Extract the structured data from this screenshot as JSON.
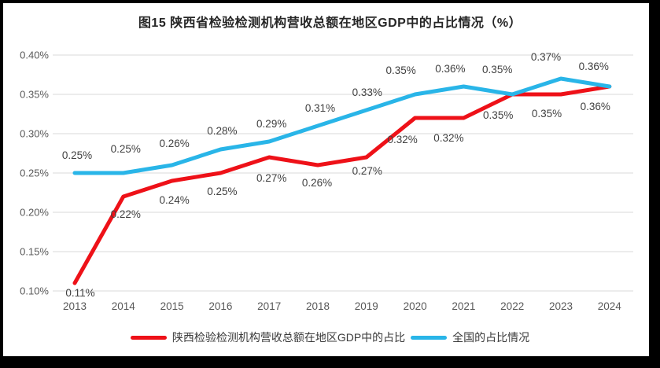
{
  "chart_data": {
    "type": "line",
    "title": "图15 陕西省检验检测机构营收总额在地区GDP中的占比情况（%）",
    "x": [
      2013,
      2014,
      2015,
      2016,
      2017,
      2018,
      2019,
      2020,
      2021,
      2022,
      2023,
      2024
    ],
    "ylim": [
      0.1,
      0.4
    ],
    "ytick_step": 0.05,
    "ytick_labels": [
      "0.10%",
      "0.15%",
      "0.20%",
      "0.25%",
      "0.30%",
      "0.35%",
      "0.40%"
    ],
    "grid": true,
    "legend_position": "bottom",
    "series": [
      {
        "key": "shaanxi",
        "name": "陕西检验检测机构营收总额在地区GDP中的占比",
        "color": "#EE1118",
        "label_side": "below",
        "values": [
          0.11,
          0.22,
          0.24,
          0.25,
          0.27,
          0.26,
          0.27,
          0.32,
          0.32,
          0.35,
          0.35,
          0.36
        ],
        "labels": [
          "0.11%",
          "0.22%",
          "0.24%",
          "0.25%",
          "0.27%",
          "0.26%",
          "0.27%",
          "0.32%",
          "0.32%",
          "0.35%",
          "0.35%",
          "0.36%"
        ]
      },
      {
        "key": "national",
        "name": "全国的占比情况",
        "color": "#29B5E8",
        "label_side": "above",
        "values": [
          0.25,
          0.25,
          0.26,
          0.28,
          0.29,
          0.31,
          0.33,
          0.35,
          0.36,
          0.35,
          0.37,
          0.36
        ],
        "labels": [
          "0.25%",
          "0.25%",
          "0.26%",
          "0.28%",
          "0.29%",
          "0.31%",
          "0.33%",
          "0.35%",
          "0.36%",
          "0.35%",
          "0.37%",
          "0.36%"
        ]
      }
    ]
  },
  "colors": {
    "background": "#FFFFFF",
    "frame": "#000000",
    "gridline": "#D9D9D9",
    "axis_text": "#595959",
    "data_label_text": "#404040",
    "title_text": "#262626"
  }
}
